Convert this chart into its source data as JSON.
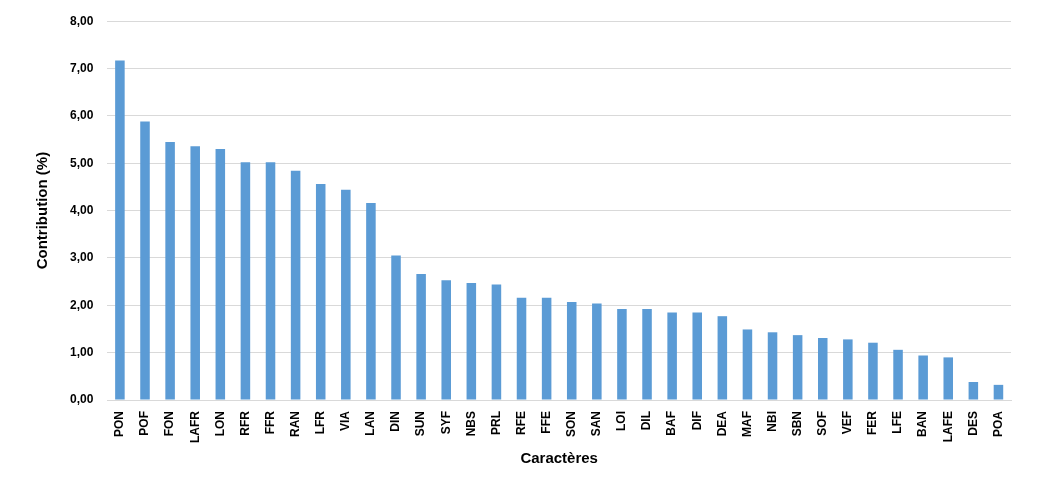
{
  "chart_data": {
    "type": "bar",
    "xlabel": "Caractères",
    "ylabel": "Contribution (%)",
    "categories": [
      "PON",
      "POF",
      "FON",
      "LAFR",
      "LON",
      "RFR",
      "FFR",
      "RAN",
      "LFR",
      "VIA",
      "LAN",
      "DIN",
      "SUN",
      "SYF",
      "NBS",
      "PRL",
      "RFE",
      "FFE",
      "SON",
      "SAN",
      "LOI",
      "DIL",
      "BAF",
      "DIF",
      "DEA",
      "MAF",
      "NBI",
      "SBN",
      "SOF",
      "VEF",
      "FER",
      "LFE",
      "BAN",
      "LAFE",
      "DES",
      "POA"
    ],
    "values": [
      7.17,
      5.88,
      5.45,
      5.36,
      5.3,
      5.02,
      5.02,
      4.84,
      4.56,
      4.44,
      4.16,
      3.05,
      2.66,
      2.53,
      2.47,
      2.44,
      2.16,
      2.16,
      2.07,
      2.04,
      1.92,
      1.92,
      1.85,
      1.85,
      1.77,
      1.49,
      1.43,
      1.37,
      1.31,
      1.28,
      1.21,
      1.06,
      0.94,
      0.9,
      0.38,
      0.32
    ],
    "color": "#5b9bd5",
    "ylim": [
      0,
      8
    ],
    "yticks": [
      {
        "value": 0,
        "label": "0,00"
      },
      {
        "value": 1,
        "label": "1,00"
      },
      {
        "value": 2,
        "label": "2,00"
      },
      {
        "value": 3,
        "label": "3,00"
      },
      {
        "value": 4,
        "label": "4,00"
      },
      {
        "value": 5,
        "label": "5,00"
      },
      {
        "value": 6,
        "label": "6,00"
      },
      {
        "value": 7,
        "label": "7,00"
      },
      {
        "value": 8,
        "label": "8,00"
      }
    ],
    "grid": "y"
  }
}
